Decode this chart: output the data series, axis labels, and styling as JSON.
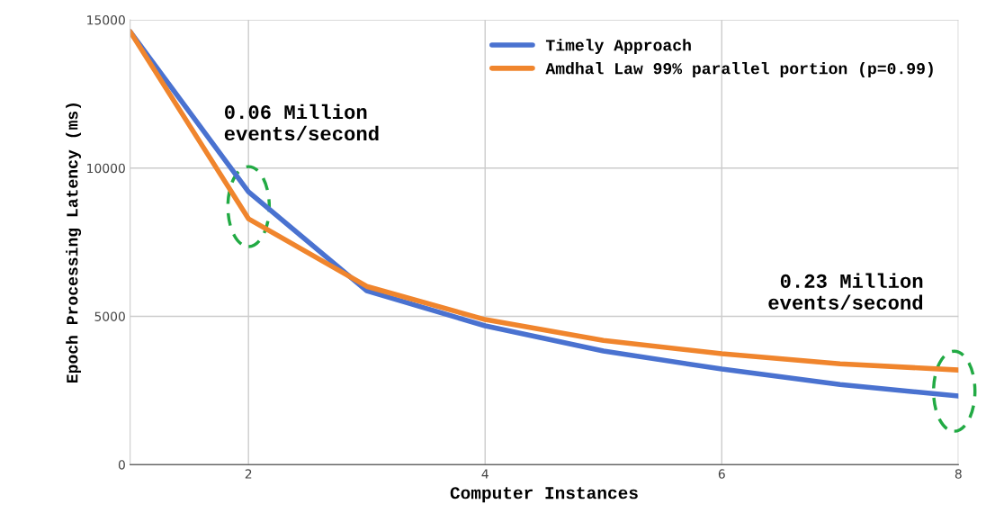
{
  "chart_data": {
    "type": "line",
    "xlabel": "Computer Instances",
    "ylabel": "Epoch Processing Latency (ms)",
    "x": [
      1,
      2,
      3,
      4,
      5,
      6,
      7,
      8
    ],
    "series": [
      {
        "name": "Timely Approach",
        "color": "#4a72d0",
        "values": [
          14600,
          9200,
          5860,
          4680,
          3830,
          3220,
          2700,
          2310
        ]
      },
      {
        "name": "Amdhal Law 99% parallel portion (p=0.99)",
        "color": "#f0852d",
        "values": [
          14600,
          8290,
          6010,
          4890,
          4190,
          3740,
          3400,
          3190
        ]
      }
    ],
    "xlim": [
      1,
      8
    ],
    "xticks": [
      2,
      4,
      6,
      8
    ],
    "ylim": [
      0,
      15000
    ],
    "yticks": [
      0,
      5000,
      10000,
      15000
    ],
    "grid": true,
    "legend": "top right",
    "marker": "none",
    "line_style": "solid",
    "annotations": [
      "0.06 Million\nevents/second",
      "0.23 Million\nevents/second"
    ]
  }
}
